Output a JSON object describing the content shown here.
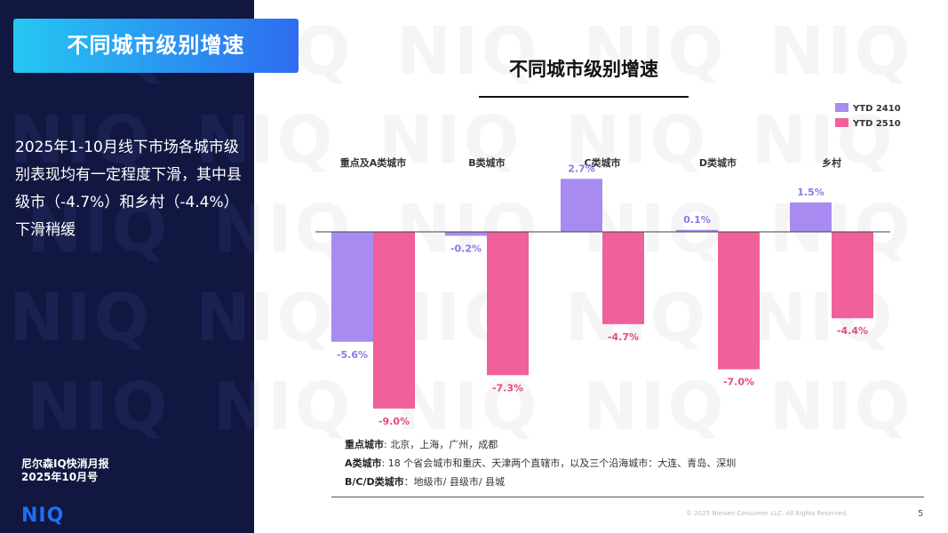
{
  "sidebar": {
    "title": "不同城市级别增速",
    "summary": "2025年1-10月线下市场各城市级别表现均有一定程度下滑，其中县级市（-4.7%）和乡村（-4.4%）下滑稍缓",
    "report_line1": "尼尔森IQ快消月报",
    "report_line2": "2025年10月号",
    "logo": "NIQ",
    "watermark": "NIQ"
  },
  "chart_data": {
    "type": "bar",
    "title": "不同城市级别增速",
    "categories": [
      "重点及A类城市",
      "B类城市",
      "C类城市",
      "D类城市",
      "乡村"
    ],
    "series": [
      {
        "name": "YTD 2410",
        "color": "#a78bf0",
        "values": [
          -5.6,
          -0.2,
          2.7,
          0.1,
          1.5
        ],
        "labels": [
          "-5.6%",
          "-0.2%",
          "2.7%",
          "0.1%",
          "1.5%"
        ]
      },
      {
        "name": "YTD 2510",
        "color": "#f0609a",
        "values": [
          -9.0,
          -7.3,
          -4.7,
          -7.0,
          -4.4
        ],
        "labels": [
          "-9.0%",
          "-7.3%",
          "-4.7%",
          "-7.0%",
          "-4.4%"
        ]
      }
    ],
    "label_colors": [
      "#8d77e6",
      "#e8487f"
    ],
    "legend_position": "top-right",
    "grid": false
  },
  "notes": [
    {
      "key": "重点城市",
      "text": ": 北京，上海，广州，成都"
    },
    {
      "key": "A类城市",
      "text": ": 18 个省会城市和重庆、天津两个直辖市，以及三个沿海城市：大连、青岛、深圳"
    },
    {
      "key": "B/C/D类城市",
      "text": "：地级市/ 县级市/ 县城"
    }
  ],
  "footer": {
    "copyright": "© 2025 Nielsen Consumer LLC. All Rights Reserved.",
    "page": "5"
  }
}
